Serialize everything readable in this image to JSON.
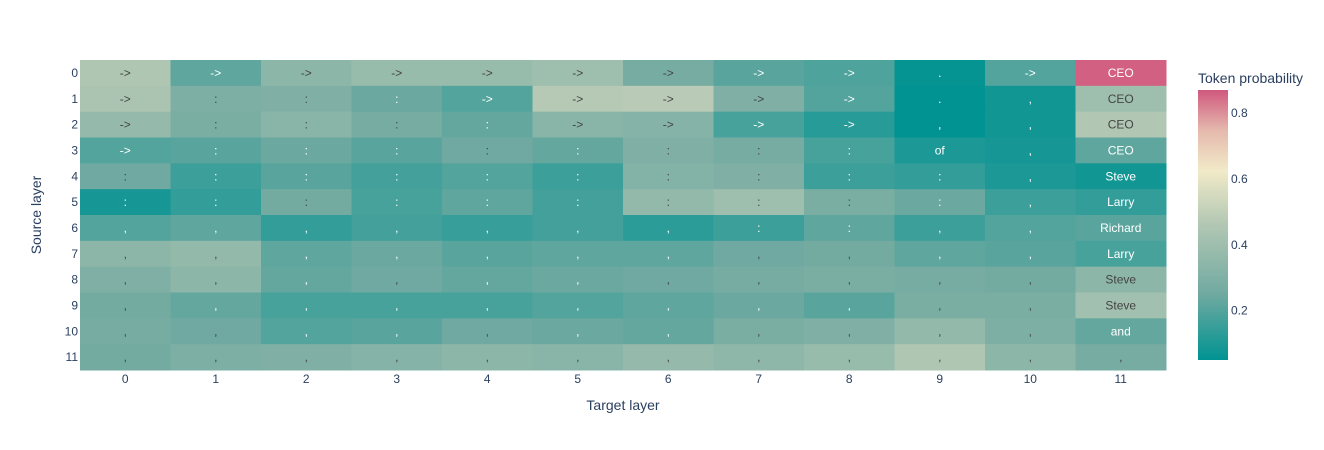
{
  "chart_data": {
    "type": "heatmap",
    "title": "",
    "xlabel": "Target layer",
    "ylabel": "Source layer",
    "x": [
      "0",
      "1",
      "2",
      "3",
      "4",
      "5",
      "6",
      "7",
      "8",
      "9",
      "10",
      "11"
    ],
    "y": [
      "0",
      "1",
      "2",
      "3",
      "4",
      "5",
      "6",
      "7",
      "8",
      "9",
      "10",
      "11"
    ],
    "colorbar": {
      "title": "Token probability",
      "range": [
        0.05,
        0.87
      ],
      "ticks": [
        0.2,
        0.4,
        0.6,
        0.8
      ],
      "tick_labels": [
        "0.2",
        "0.4",
        "0.6",
        "0.8"
      ],
      "colorscale": [
        [
          0,
          "#009392"
        ],
        [
          0.25,
          "#72aaa1"
        ],
        [
          0.5,
          "#b1c7b3"
        ],
        [
          0.7,
          "#f1eac8"
        ],
        [
          0.85,
          "#e5b9ad"
        ],
        [
          1,
          "#d0587e"
        ]
      ]
    },
    "text": [
      [
        "->",
        "->",
        "->",
        "->",
        "->",
        "->",
        "->",
        "->",
        "->",
        ".",
        "->",
        "CEO"
      ],
      [
        "->",
        ":",
        ":",
        ":",
        "->",
        "->",
        "->",
        "->",
        "->",
        ".",
        ",",
        "CEO"
      ],
      [
        "->",
        ":",
        ":",
        ":",
        ":",
        "->",
        "->",
        "->",
        "->",
        ",",
        ",",
        "CEO"
      ],
      [
        "->",
        ":",
        ":",
        ":",
        ":",
        ":",
        ":",
        ":",
        ":",
        "of",
        ",",
        "CEO"
      ],
      [
        ":",
        ":",
        ":",
        ":",
        ":",
        ":",
        ":",
        ":",
        ":",
        ":",
        ",",
        "Steve"
      ],
      [
        ":",
        ":",
        ":",
        ":",
        ":",
        ":",
        ":",
        ":",
        ":",
        ":",
        ",",
        "Larry"
      ],
      [
        ",",
        ",",
        ",",
        ",",
        ",",
        ",",
        ",",
        ":",
        ":",
        ",",
        ",",
        "Richard"
      ],
      [
        ",",
        ",",
        ",",
        ",",
        ",",
        ",",
        ",",
        ",",
        ",",
        ",",
        ",",
        "Larry"
      ],
      [
        ",",
        ",",
        ",",
        ",",
        ",",
        ",",
        ",",
        ",",
        ",",
        ",",
        ",",
        "Steve"
      ],
      [
        ",",
        ",",
        ",",
        ",",
        ",",
        ",",
        ",",
        ",",
        ",",
        ",",
        ",",
        "Steve"
      ],
      [
        ",",
        ",",
        ",",
        ",",
        ",",
        ",",
        ",",
        ",",
        ",",
        ",",
        ",",
        "and"
      ],
      [
        ",",
        ",",
        ",",
        ",",
        ",",
        ",",
        ",",
        ",",
        ",",
        ",",
        ",",
        ","
      ]
    ],
    "z": [
      [
        0.45,
        0.22,
        0.34,
        0.38,
        0.38,
        0.4,
        0.27,
        0.21,
        0.19,
        0.06,
        0.2,
        0.86
      ],
      [
        0.44,
        0.29,
        0.3,
        0.24,
        0.2,
        0.47,
        0.48,
        0.3,
        0.2,
        0.05,
        0.08,
        0.4
      ],
      [
        0.37,
        0.28,
        0.33,
        0.27,
        0.23,
        0.33,
        0.32,
        0.18,
        0.12,
        0.04,
        0.08,
        0.46
      ],
      [
        0.2,
        0.21,
        0.24,
        0.21,
        0.25,
        0.23,
        0.3,
        0.27,
        0.18,
        0.1,
        0.09,
        0.22
      ],
      [
        0.25,
        0.16,
        0.21,
        0.17,
        0.2,
        0.16,
        0.31,
        0.3,
        0.16,
        0.14,
        0.1,
        0.08
      ],
      [
        0.09,
        0.14,
        0.26,
        0.18,
        0.22,
        0.17,
        0.36,
        0.4,
        0.28,
        0.24,
        0.16,
        0.14
      ],
      [
        0.2,
        0.22,
        0.14,
        0.17,
        0.15,
        0.17,
        0.13,
        0.16,
        0.22,
        0.16,
        0.2,
        0.21
      ],
      [
        0.34,
        0.36,
        0.22,
        0.24,
        0.21,
        0.22,
        0.22,
        0.25,
        0.26,
        0.22,
        0.21,
        0.18
      ],
      [
        0.3,
        0.34,
        0.23,
        0.25,
        0.23,
        0.24,
        0.25,
        0.27,
        0.28,
        0.27,
        0.26,
        0.34
      ],
      [
        0.26,
        0.23,
        0.18,
        0.18,
        0.18,
        0.2,
        0.22,
        0.24,
        0.21,
        0.28,
        0.28,
        0.41
      ],
      [
        0.27,
        0.25,
        0.2,
        0.21,
        0.25,
        0.24,
        0.23,
        0.28,
        0.3,
        0.36,
        0.29,
        0.23
      ],
      [
        0.26,
        0.29,
        0.3,
        0.32,
        0.34,
        0.33,
        0.37,
        0.35,
        0.38,
        0.45,
        0.34,
        0.27
      ]
    ]
  }
}
